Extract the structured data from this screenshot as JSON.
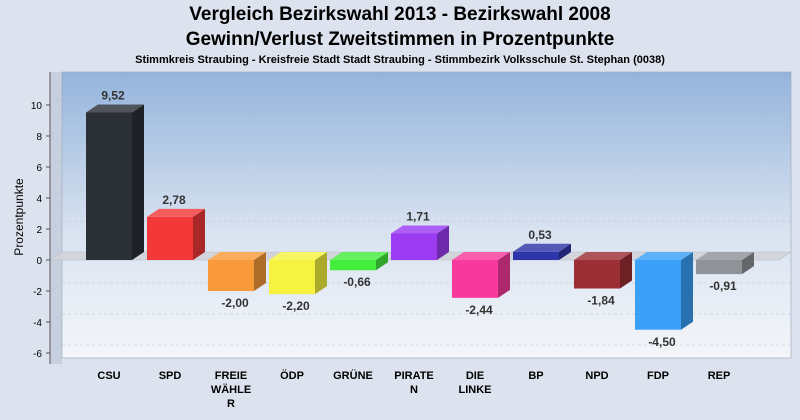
{
  "chart_data": {
    "type": "bar",
    "title": "Vergleich Bezirkswahl 2013 - Bezirkswahl 2008",
    "subtitle": "Gewinn/Verlust Zweitstimmen in Prozentpunkte",
    "caption": "Stimmkreis Straubing - Kreisfreie Stadt Stadt Straubing - Stimmbezirk Volksschule St. Stephan (0038)",
    "ylabel": "Prozentpunkte",
    "xlabel": "",
    "ylim": [
      -6,
      12
    ],
    "yticks": [
      10,
      8,
      6,
      4,
      2,
      0,
      -2,
      -4,
      -6
    ],
    "grid": true,
    "categories": [
      [
        "CSU"
      ],
      [
        "SPD"
      ],
      [
        "FREIE",
        "WÄHLE",
        "R"
      ],
      [
        "ÖDP"
      ],
      [
        "GRÜNE"
      ],
      [
        "PIRATE",
        "N"
      ],
      [
        "DIE",
        "LINKE"
      ],
      [
        "BP"
      ],
      [
        "NPD"
      ],
      [
        "FDP"
      ],
      [
        "REP"
      ]
    ],
    "values": [
      9.52,
      2.78,
      -2.0,
      -2.2,
      -0.66,
      1.71,
      -2.44,
      0.53,
      -1.84,
      -4.5,
      -0.91
    ],
    "value_labels": [
      "9,52",
      "2,78",
      "-2,00",
      "-2,20",
      "-0,66",
      "1,71",
      "-2,44",
      "0,53",
      "-1,84",
      "-4,50",
      "-0,91"
    ],
    "colors": [
      "#2b2f36",
      "#f23838",
      "#f99a3a",
      "#f6f340",
      "#44ec3c",
      "#9b3cf3",
      "#f8399c",
      "#2e35a8",
      "#9b2f35",
      "#3aa0f8",
      "#8f9398"
    ]
  }
}
